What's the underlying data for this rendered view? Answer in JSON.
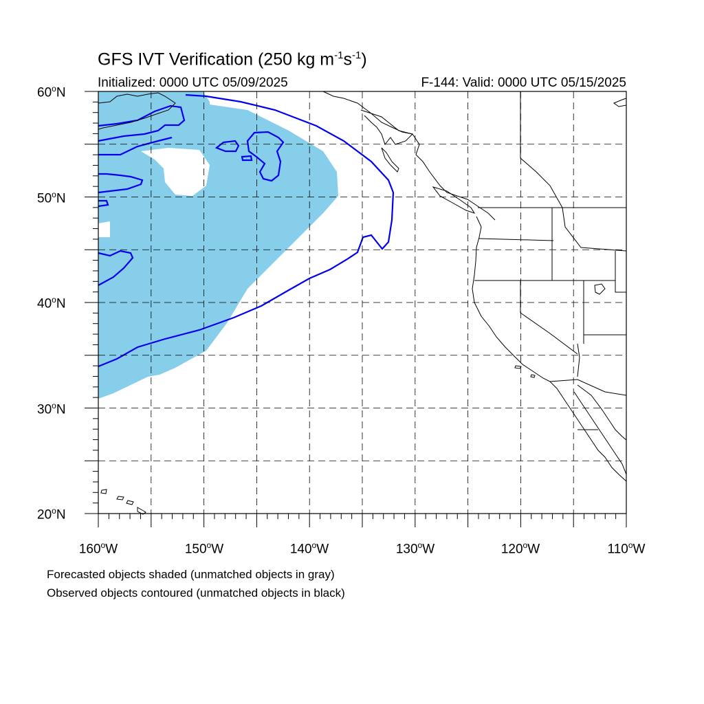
{
  "title": {
    "main": "GFS IVT Verification (250 kg m",
    "sup1": "-1",
    "mid": "s",
    "sup2": "-1",
    "end": ")"
  },
  "subtitle_left": "Initialized: 0000 UTC 05/09/2025",
  "subtitle_right": "F-144: Valid: 0000 UTC 05/15/2025",
  "lat_labels": [
    {
      "num": "60",
      "hemi": "N"
    },
    {
      "num": "50",
      "hemi": "N"
    },
    {
      "num": "40",
      "hemi": "N"
    },
    {
      "num": "30",
      "hemi": "N"
    },
    {
      "num": "20",
      "hemi": "N"
    }
  ],
  "lon_labels": [
    {
      "num": "160",
      "hemi": "W"
    },
    {
      "num": "150",
      "hemi": "W"
    },
    {
      "num": "140",
      "hemi": "W"
    },
    {
      "num": "130",
      "hemi": "W"
    },
    {
      "num": "120",
      "hemi": "W"
    },
    {
      "num": "110",
      "hemi": "W"
    }
  ],
  "degree_symbol": "o",
  "caption": {
    "line1": "Forecasted objects shaded (unmatched objects in gray)",
    "line2": "Observed objects contoured (unmatched objects in black)"
  },
  "colors": {
    "forecast_fill": "#87ceeb",
    "observed_contour": "#0000ee",
    "coastline": "#000000",
    "grid": "#000000"
  },
  "map_extent": {
    "lon_min": -160,
    "lon_max": -110,
    "lat_min": 20,
    "lat_max": 60
  }
}
